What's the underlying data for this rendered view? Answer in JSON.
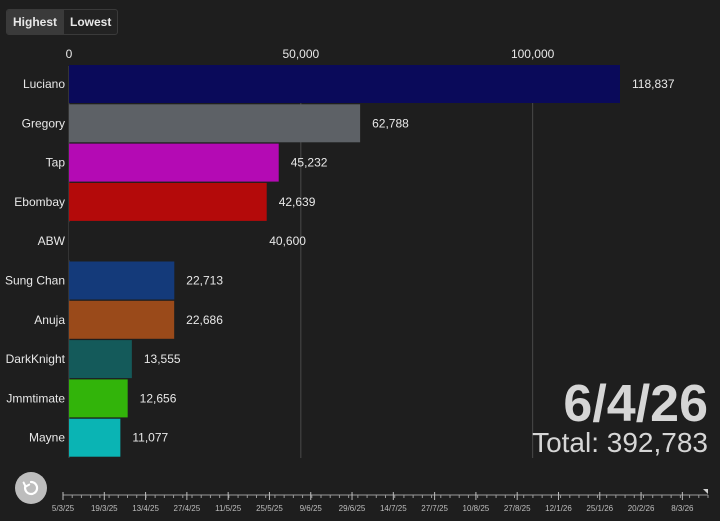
{
  "controls": {
    "highest_label": "Highest",
    "lowest_label": "Lowest",
    "replay_icon": "replay-icon"
  },
  "overlay": {
    "date": "6/4/26",
    "total_prefix": "Total:",
    "total_value": "392,783"
  },
  "colors": {
    "background": "#1e1e1e",
    "grid": "#4a4a4a",
    "text": "#e8e8e8"
  },
  "chart_data": {
    "type": "bar",
    "orientation": "horizontal",
    "categories": [
      "Luciano",
      "Gregory",
      "Tap",
      "Ebombay",
      "ABW",
      "Sung Chan",
      "Anuja",
      "DarkKnight",
      "Jmmtimate",
      "Mayne"
    ],
    "values": [
      118837,
      62788,
      45232,
      42639,
      40600,
      22713,
      22686,
      13555,
      12656,
      11077
    ],
    "value_labels": [
      "118,837",
      "62,788",
      "45,232",
      "42,639",
      "40,600",
      "22,713",
      "22,686",
      "13,555",
      "12,656",
      "11,077"
    ],
    "bar_colors": [
      "#0a0a5a",
      "#5d6166",
      "#b40ab4",
      "#b40a0a",
      "#1e1e1e",
      "#143a7a",
      "#9a4a1a",
      "#145a5a",
      "#32b40a",
      "#0ab4b4"
    ],
    "x_ticks": [
      0,
      50000,
      100000
    ],
    "x_tick_labels": [
      "0",
      "50,000",
      "100,000"
    ],
    "xlim": [
      0,
      118837
    ],
    "grid": true,
    "timeline_labels": [
      "5/3/25",
      "19/3/25",
      "13/4/25",
      "27/4/25",
      "11/5/25",
      "25/5/25",
      "9/6/25",
      "29/6/25",
      "14/7/25",
      "27/7/25",
      "10/8/25",
      "27/8/25",
      "12/1/26",
      "25/1/26",
      "20/2/26",
      "8/3/26"
    ]
  }
}
